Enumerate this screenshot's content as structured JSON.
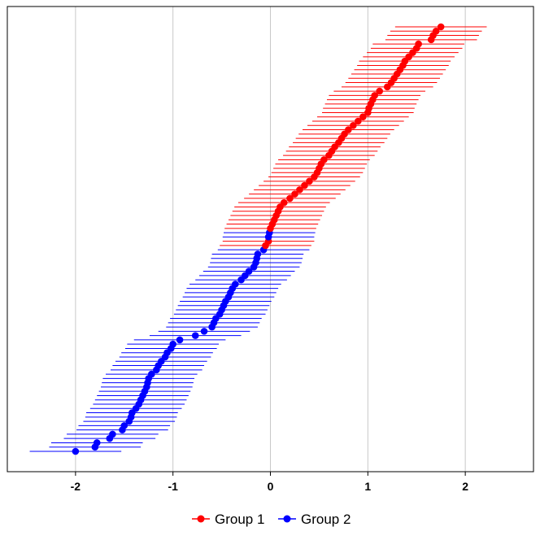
{
  "chart_data": {
    "type": "scatter",
    "title": "",
    "xlabel": "",
    "ylabel": "",
    "xlim": [
      -2.7,
      2.7
    ],
    "x_ticks": [
      -2,
      -1,
      0,
      1,
      2
    ],
    "x_tick_labels": [
      "-2",
      "-1",
      "0",
      "1",
      "2"
    ],
    "grid": "vertical",
    "legend_position": "bottom",
    "error_half_width": 0.47,
    "series": [
      {
        "name": "Group 1",
        "color": "#ff0000",
        "values": [
          -0.05,
          -0.02,
          0.0,
          0.02,
          0.04,
          0.06,
          0.08,
          0.1,
          0.14,
          0.2,
          0.25,
          0.3,
          0.35,
          0.4,
          0.45,
          0.48,
          0.5,
          0.52,
          0.55,
          0.6,
          0.63,
          0.66,
          0.7,
          0.73,
          0.76,
          0.8,
          0.85,
          0.9,
          0.95,
          1.0,
          1.01,
          1.03,
          1.05,
          1.07,
          1.12,
          1.2,
          1.24,
          1.27,
          1.3,
          1.33,
          1.36,
          1.38,
          1.42,
          1.46,
          1.5,
          1.52,
          1.65,
          1.67,
          1.7,
          1.75
        ]
      },
      {
        "name": "Group 2",
        "color": "#0000ff",
        "values": [
          -2.0,
          -1.8,
          -1.78,
          -1.65,
          -1.62,
          -1.52,
          -1.5,
          -1.45,
          -1.43,
          -1.42,
          -1.38,
          -1.35,
          -1.33,
          -1.31,
          -1.29,
          -1.27,
          -1.26,
          -1.25,
          -1.22,
          -1.17,
          -1.15,
          -1.12,
          -1.08,
          -1.06,
          -1.02,
          -1.0,
          -0.93,
          -0.77,
          -0.68,
          -0.6,
          -0.58,
          -0.56,
          -0.52,
          -0.5,
          -0.48,
          -0.46,
          -0.43,
          -0.41,
          -0.39,
          -0.36,
          -0.3,
          -0.26,
          -0.22,
          -0.17,
          -0.15,
          -0.14,
          -0.13,
          -0.07,
          -0.02,
          -0.01
        ]
      }
    ]
  }
}
